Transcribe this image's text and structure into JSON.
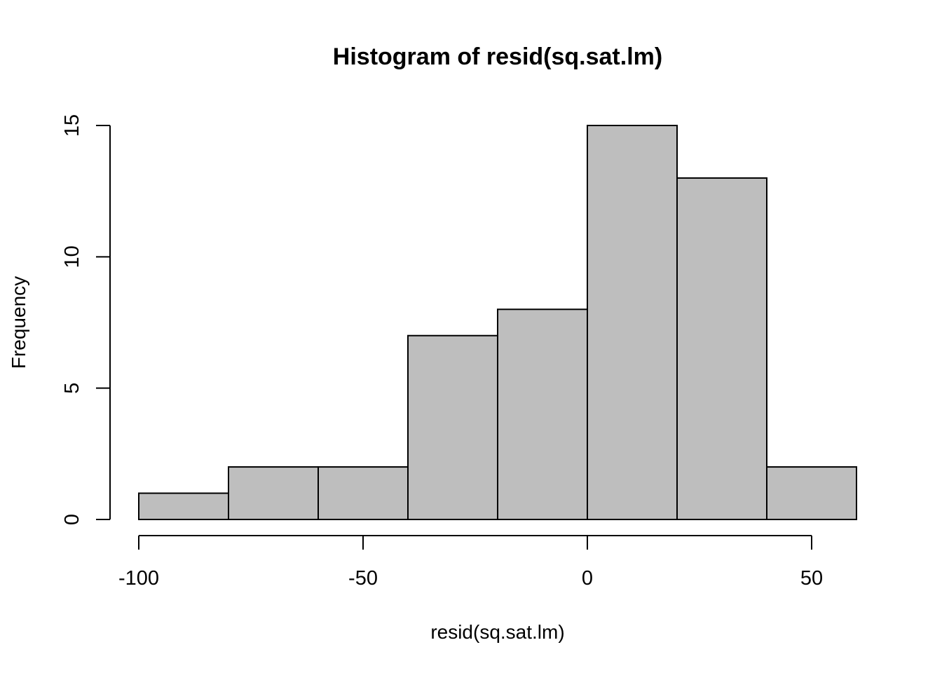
{
  "chart_data": {
    "type": "bar",
    "title": "Histogram of resid(sq.sat.lm)",
    "xlabel": "resid(sq.sat.lm)",
    "ylabel": "Frequency",
    "bins": [
      {
        "start": -100,
        "end": -80,
        "count": 1
      },
      {
        "start": -80,
        "end": -60,
        "count": 2
      },
      {
        "start": -60,
        "end": -40,
        "count": 2
      },
      {
        "start": -40,
        "end": -20,
        "count": 7
      },
      {
        "start": -20,
        "end": 0,
        "count": 8
      },
      {
        "start": 0,
        "end": 20,
        "count": 15
      },
      {
        "start": 20,
        "end": 40,
        "count": 13
      },
      {
        "start": 40,
        "end": 60,
        "count": 2
      }
    ],
    "xlim": [
      -100,
      60
    ],
    "ylim": [
      0,
      15
    ],
    "x_ticks": [
      -100,
      -50,
      0,
      50
    ],
    "x_tick_labels": [
      "-100",
      "-50",
      "0",
      "50"
    ],
    "y_ticks": [
      0,
      5,
      10,
      15
    ],
    "y_tick_labels": [
      "0",
      "5",
      "10",
      "15"
    ],
    "bar_color": "#bebebe",
    "edge_color": "#000000",
    "grid": false
  }
}
